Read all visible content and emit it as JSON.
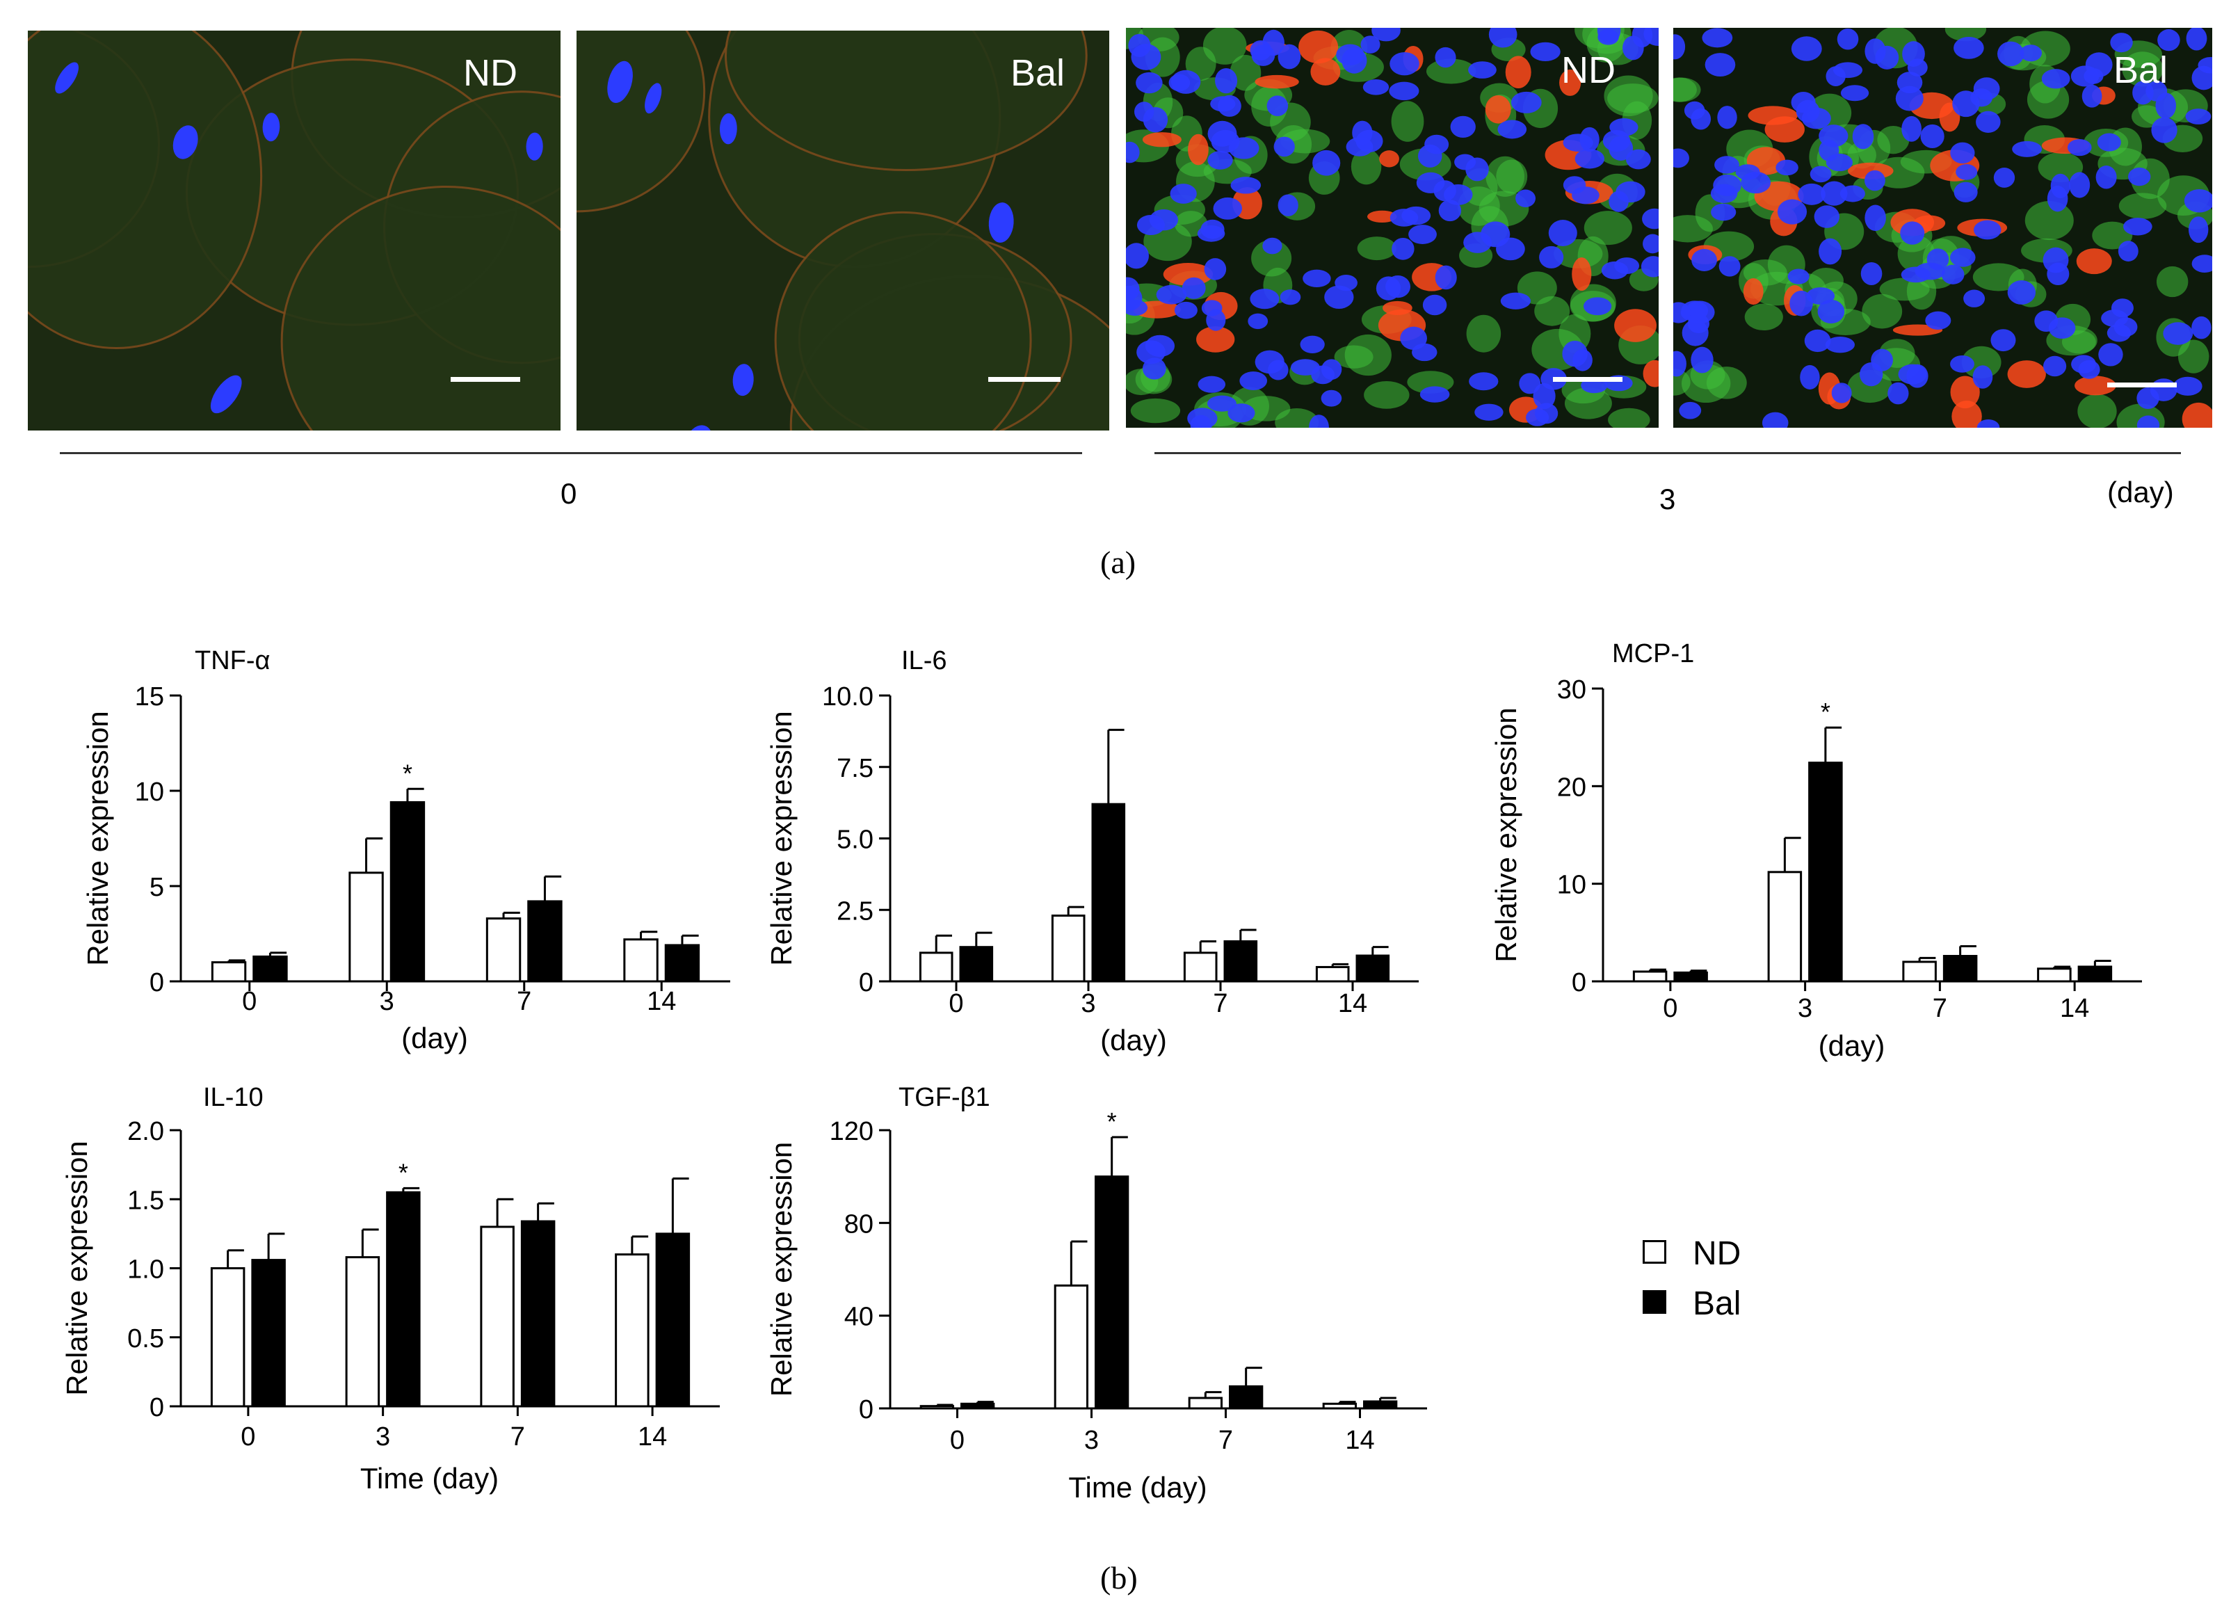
{
  "panel_a": {
    "label": "(a)",
    "images": [
      {
        "tag": "ND",
        "group": "0"
      },
      {
        "tag": "Bal",
        "group": "0"
      },
      {
        "tag": "ND",
        "group": "3"
      },
      {
        "tag": "Bal",
        "group": "3"
      }
    ],
    "group_labels": [
      "0",
      "3"
    ],
    "day_unit": "(day)"
  },
  "panel_b": {
    "label": "(b)"
  },
  "legend": {
    "nd": "ND",
    "bal": "Bal"
  },
  "colors": {
    "nd_fill": "#ffffff",
    "bal_fill": "#000000",
    "nuclei": "#2c3cff",
    "cytoplasm": "#3fbf3a",
    "membrane": "#ff4a1c"
  },
  "chart_data": [
    {
      "type": "bar",
      "title": "TNF-α",
      "xlabel": "(day)",
      "ylabel": "Relative expression",
      "categories": [
        "0",
        "3",
        "7",
        "14"
      ],
      "ylim": [
        0,
        15
      ],
      "yticks": [
        "0",
        "5",
        "10",
        "15"
      ],
      "series": [
        {
          "name": "ND",
          "values": [
            1.0,
            5.7,
            3.3,
            2.2
          ],
          "errors": [
            0.1,
            1.8,
            0.3,
            0.4
          ]
        },
        {
          "name": "Bal",
          "values": [
            1.3,
            9.4,
            4.2,
            1.9
          ],
          "errors": [
            0.2,
            0.7,
            1.3,
            0.5
          ]
        }
      ],
      "significance": [
        {
          "category": "3",
          "mark": "*"
        }
      ]
    },
    {
      "type": "bar",
      "title": "IL-6",
      "xlabel": "(day)",
      "ylabel": "Relative expression",
      "categories": [
        "0",
        "3",
        "7",
        "14"
      ],
      "ylim": [
        0,
        10
      ],
      "yticks": [
        "0",
        "2.5",
        "5.0",
        "7.5",
        "10.0"
      ],
      "series": [
        {
          "name": "ND",
          "values": [
            1.0,
            2.3,
            1.0,
            0.5
          ],
          "errors": [
            0.6,
            0.3,
            0.4,
            0.1
          ]
        },
        {
          "name": "Bal",
          "values": [
            1.2,
            6.2,
            1.4,
            0.9
          ],
          "errors": [
            0.5,
            2.6,
            0.4,
            0.3
          ]
        }
      ],
      "significance": []
    },
    {
      "type": "bar",
      "title": "MCP-1",
      "xlabel": "(day)",
      "ylabel": "Relative expression",
      "categories": [
        "0",
        "3",
        "7",
        "14"
      ],
      "ylim": [
        0,
        30
      ],
      "yticks": [
        "0",
        "10",
        "20",
        "30"
      ],
      "series": [
        {
          "name": "ND",
          "values": [
            1.0,
            11.2,
            2.0,
            1.3
          ],
          "errors": [
            0.2,
            3.5,
            0.4,
            0.2
          ]
        },
        {
          "name": "Bal",
          "values": [
            0.9,
            22.4,
            2.6,
            1.5
          ],
          "errors": [
            0.2,
            3.6,
            1.0,
            0.6
          ]
        }
      ],
      "significance": [
        {
          "category": "3",
          "mark": "*"
        }
      ]
    },
    {
      "type": "bar",
      "title": "IL-10",
      "xlabel": "Time (day)",
      "ylabel": "Relative expression",
      "categories": [
        "0",
        "3",
        "7",
        "14"
      ],
      "ylim": [
        0,
        2
      ],
      "yticks": [
        "0",
        "0.5",
        "1.0",
        "1.5",
        "2.0"
      ],
      "series": [
        {
          "name": "ND",
          "values": [
            1.0,
            1.08,
            1.3,
            1.1
          ],
          "errors": [
            0.13,
            0.2,
            0.2,
            0.13
          ]
        },
        {
          "name": "Bal",
          "values": [
            1.06,
            1.55,
            1.34,
            1.25
          ],
          "errors": [
            0.19,
            0.03,
            0.13,
            0.4
          ]
        }
      ],
      "significance": [
        {
          "category": "3",
          "mark": "*"
        }
      ]
    },
    {
      "type": "bar",
      "title": "TGF-β1",
      "xlabel": "Time (day)",
      "ylabel": "Relative expression",
      "categories": [
        "0",
        "3",
        "7",
        "14"
      ],
      "ylim": [
        0,
        120
      ],
      "yticks": [
        "0",
        "40",
        "80",
        "120"
      ],
      "series": [
        {
          "name": "ND",
          "values": [
            1.0,
            53,
            4.5,
            2.0
          ],
          "errors": [
            0.5,
            19,
            2.5,
            0.8
          ]
        },
        {
          "name": "Bal",
          "values": [
            2.0,
            100,
            9.5,
            3.0
          ],
          "errors": [
            0.8,
            17,
            8,
            1.5
          ]
        }
      ],
      "significance": [
        {
          "category": "3",
          "mark": "*"
        }
      ]
    }
  ]
}
